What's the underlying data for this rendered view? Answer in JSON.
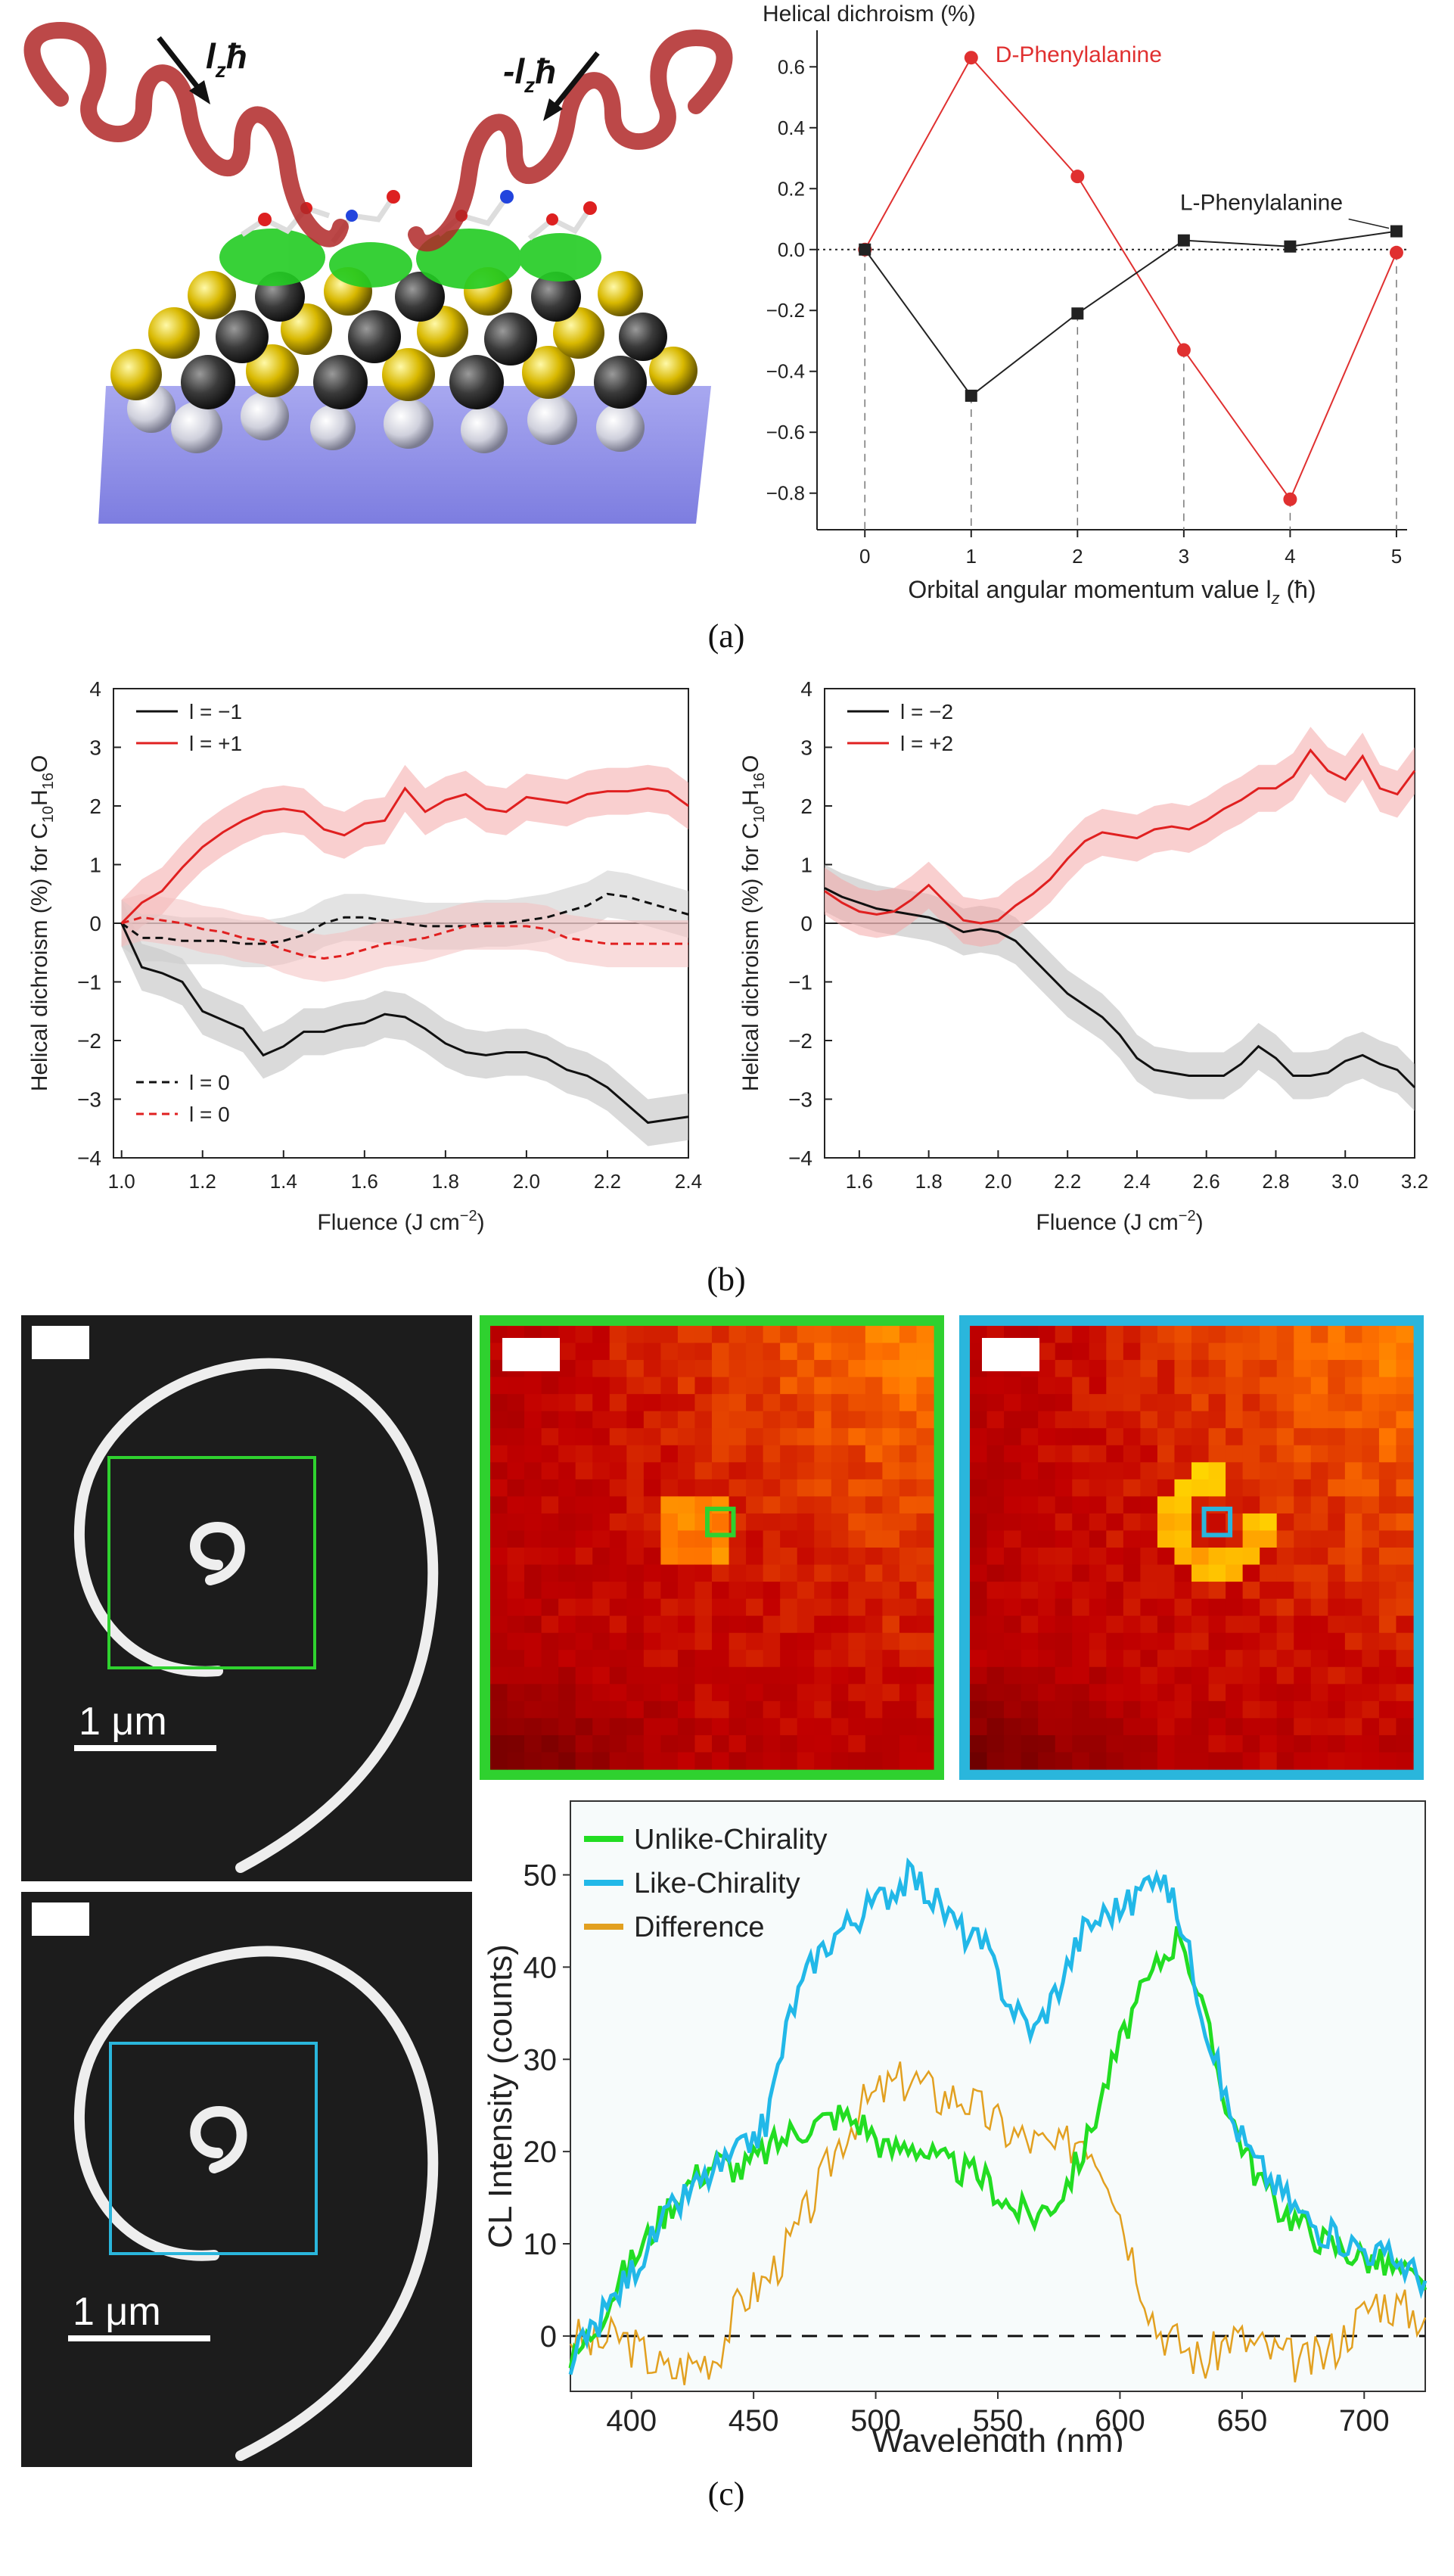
{
  "captions": {
    "a": "(a)",
    "b": "(b)",
    "c": "(c)"
  },
  "illustration_a": {
    "arrow_left_label": "l",
    "arrow_left_sub": "z",
    "arrow_left_hbar": "ħ",
    "arrow_right_label": "-l",
    "arrow_right_sub": "z",
    "arrow_right_hbar": "ħ"
  },
  "images_c": {
    "scale_bar_top": "1 μm",
    "scale_bar_bottom": "1 μm",
    "box_color_top": "#2fd12f",
    "box_color_bottom": "#2ab6dc"
  },
  "chart_data": [
    {
      "id": "a-right",
      "type": "line",
      "title": "Helical dichroism (%)",
      "xlabel": "Orbital angular momentum value l",
      "xlabel_sub": "z",
      "xlabel_unit": " (ħ)",
      "ylabel": "Helical dichroism (%)",
      "xlim": [
        -0.45,
        5.1
      ],
      "ylim": [
        -0.92,
        0.72
      ],
      "xticks": [
        0,
        1,
        2,
        3,
        4,
        5
      ],
      "yticks": [
        0.6,
        0.4,
        0.2,
        0.0,
        -0.2,
        -0.4,
        -0.6,
        -0.8
      ],
      "ytick_labels": [
        "0.6",
        "0.4",
        "0.2",
        "0.0",
        "−0.2",
        "−0.4",
        "−0.6",
        "−0.8"
      ],
      "x": [
        0,
        1,
        2,
        3,
        4,
        5
      ],
      "series": [
        {
          "name": "D-Phenylalanine",
          "label": "D-Phenylalanine",
          "color": "#e03030",
          "marker": "circle",
          "values": [
            0.0,
            0.63,
            0.24,
            -0.33,
            -0.82,
            -0.01
          ]
        },
        {
          "name": "L-Phenylalanine",
          "label": "L-Phenylalanine",
          "color": "#222222",
          "marker": "square",
          "values": [
            0.0,
            -0.48,
            -0.21,
            0.03,
            0.01,
            0.06
          ]
        }
      ]
    },
    {
      "id": "b-left",
      "type": "line",
      "xlabel": "Fluence (J cm",
      "xlabel_sup": "−2",
      "xlabel_end": ")",
      "ylabel": "Helical dichroism (%) for C",
      "ylabel_sub1": "10",
      "ylabel_mid": "H",
      "ylabel_sub2": "16",
      "ylabel_end": "O",
      "xlim": [
        0.98,
        2.4
      ],
      "ylim": [
        -4,
        4
      ],
      "xticks": [
        1.0,
        1.2,
        1.4,
        1.6,
        1.8,
        2.0,
        2.2,
        2.4
      ],
      "xtick_labels": [
        "1.0",
        "1.2",
        "1.4",
        "1.6",
        "1.8",
        "2.0",
        "2.2",
        "2.4"
      ],
      "yticks": [
        4,
        3,
        2,
        1,
        0,
        -1,
        -2,
        -3,
        -4
      ],
      "ytick_labels": [
        "4",
        "3",
        "2",
        "1",
        "0",
        "−1",
        "−2",
        "−3",
        "−4"
      ],
      "x": [
        1.0,
        1.05,
        1.1,
        1.15,
        1.2,
        1.25,
        1.3,
        1.35,
        1.4,
        1.45,
        1.5,
        1.55,
        1.6,
        1.65,
        1.7,
        1.75,
        1.8,
        1.85,
        1.9,
        1.95,
        2.0,
        2.05,
        2.1,
        2.15,
        2.2,
        2.25,
        2.3,
        2.35,
        2.4
      ],
      "series": [
        {
          "name": "l = −1",
          "color": "#111111",
          "dash": "solid",
          "band": "#bbbbbb",
          "values": [
            0,
            -0.75,
            -0.85,
            -1.0,
            -1.5,
            -1.65,
            -1.8,
            -2.25,
            -2.1,
            -1.85,
            -1.85,
            -1.75,
            -1.7,
            -1.55,
            -1.6,
            -1.8,
            -2.05,
            -2.2,
            -2.25,
            -2.2,
            -2.2,
            -2.3,
            -2.5,
            -2.6,
            -2.8,
            -3.1,
            -3.4,
            -3.35,
            -3.3
          ]
        },
        {
          "name": "l = +1",
          "color": "#e02020",
          "dash": "solid",
          "band": "#f4a8a8",
          "values": [
            0,
            0.35,
            0.55,
            0.95,
            1.3,
            1.55,
            1.75,
            1.9,
            1.95,
            1.9,
            1.6,
            1.5,
            1.7,
            1.75,
            2.3,
            1.9,
            2.1,
            2.2,
            1.95,
            1.9,
            2.15,
            2.1,
            2.05,
            2.2,
            2.25,
            2.25,
            2.3,
            2.25,
            2.0
          ]
        },
        {
          "name": "l = 0 (black)",
          "color": "#111111",
          "dash": "dashed",
          "band": "#cccccc",
          "values": [
            0,
            -0.25,
            -0.25,
            -0.3,
            -0.3,
            -0.3,
            -0.35,
            -0.35,
            -0.3,
            -0.2,
            0.0,
            0.1,
            0.1,
            0.05,
            0.0,
            -0.05,
            -0.05,
            -0.05,
            0.0,
            0.0,
            0.05,
            0.1,
            0.2,
            0.3,
            0.5,
            0.45,
            0.35,
            0.25,
            0.15
          ]
        },
        {
          "name": "l = 0 (red)",
          "color": "#e02020",
          "dash": "dashed",
          "band": "#f4c0c0",
          "values": [
            0,
            0.1,
            0.05,
            0.0,
            -0.1,
            -0.15,
            -0.25,
            -0.3,
            -0.45,
            -0.55,
            -0.6,
            -0.55,
            -0.45,
            -0.35,
            -0.3,
            -0.25,
            -0.15,
            -0.05,
            -0.05,
            -0.05,
            -0.05,
            -0.1,
            -0.25,
            -0.3,
            -0.35,
            -0.35,
            -0.35,
            -0.35,
            -0.35
          ]
        }
      ],
      "legend": [
        {
          "label": "l = −1",
          "color": "#111111",
          "dash": "solid"
        },
        {
          "label": "l = +1",
          "color": "#e02020",
          "dash": "solid"
        },
        {
          "label": "l = 0",
          "color": "#111111",
          "dash": "dashed"
        },
        {
          "label": "l = 0",
          "color": "#e02020",
          "dash": "dashed"
        }
      ]
    },
    {
      "id": "b-right",
      "type": "line",
      "xlabel": "Fluence (J cm",
      "xlabel_sup": "−2",
      "xlabel_end": ")",
      "ylabel": "Helical dichroism (%) for C",
      "ylabel_sub1": "10",
      "ylabel_mid": "H",
      "ylabel_sub2": "16",
      "ylabel_end": "O",
      "xlim": [
        1.5,
        3.2
      ],
      "ylim": [
        -4,
        4
      ],
      "xticks": [
        1.6,
        1.8,
        2.0,
        2.2,
        2.4,
        2.6,
        2.8,
        3.0,
        3.2
      ],
      "xtick_labels": [
        "1.6",
        "1.8",
        "2.0",
        "2.2",
        "2.4",
        "2.6",
        "2.8",
        "3.0",
        "3.2"
      ],
      "yticks": [
        4,
        3,
        2,
        1,
        0,
        -1,
        -2,
        -3,
        -4
      ],
      "ytick_labels": [
        "4",
        "3",
        "2",
        "1",
        "0",
        "−1",
        "−2",
        "−3",
        "−4"
      ],
      "x": [
        1.5,
        1.55,
        1.6,
        1.65,
        1.7,
        1.75,
        1.8,
        1.85,
        1.9,
        1.95,
        2.0,
        2.05,
        2.1,
        2.15,
        2.2,
        2.25,
        2.3,
        2.35,
        2.4,
        2.45,
        2.5,
        2.55,
        2.6,
        2.65,
        2.7,
        2.75,
        2.8,
        2.85,
        2.9,
        2.95,
        3.0,
        3.05,
        3.1,
        3.15,
        3.2
      ],
      "series": [
        {
          "name": "l = −2",
          "color": "#111111",
          "dash": "solid",
          "band": "#bbbbbb",
          "values": [
            0.6,
            0.45,
            0.35,
            0.25,
            0.2,
            0.15,
            0.1,
            0.0,
            -0.15,
            -0.1,
            -0.15,
            -0.3,
            -0.6,
            -0.9,
            -1.2,
            -1.4,
            -1.6,
            -1.9,
            -2.3,
            -2.5,
            -2.55,
            -2.6,
            -2.6,
            -2.6,
            -2.4,
            -2.1,
            -2.3,
            -2.6,
            -2.6,
            -2.55,
            -2.35,
            -2.25,
            -2.4,
            -2.5,
            -2.8
          ]
        },
        {
          "name": "l = +2",
          "color": "#e02020",
          "dash": "solid",
          "band": "#f4a8a8",
          "values": [
            0.55,
            0.35,
            0.2,
            0.15,
            0.2,
            0.4,
            0.65,
            0.35,
            0.05,
            0.0,
            0.05,
            0.3,
            0.5,
            0.75,
            1.1,
            1.4,
            1.55,
            1.5,
            1.45,
            1.6,
            1.65,
            1.6,
            1.75,
            1.95,
            2.1,
            2.3,
            2.3,
            2.5,
            2.95,
            2.6,
            2.45,
            2.85,
            2.3,
            2.2,
            2.6
          ]
        }
      ],
      "legend": [
        {
          "label": "l = −2",
          "color": "#111111",
          "dash": "solid"
        },
        {
          "label": "l = +2",
          "color": "#e02020",
          "dash": "solid"
        }
      ]
    },
    {
      "id": "c-spectrum",
      "type": "line",
      "xlabel": "Wavelength (nm)",
      "ylabel": "CL Intensity (counts)",
      "xlim": [
        375,
        725
      ],
      "ylim": [
        -6,
        58
      ],
      "xticks": [
        400,
        450,
        500,
        550,
        600,
        650,
        700
      ],
      "yticks": [
        0,
        10,
        20,
        30,
        40,
        50
      ],
      "x": [
        375,
        385,
        395,
        405,
        415,
        425,
        435,
        445,
        455,
        465,
        475,
        485,
        495,
        505,
        515,
        525,
        535,
        545,
        555,
        565,
        575,
        585,
        595,
        605,
        615,
        625,
        635,
        645,
        655,
        665,
        675,
        685,
        695,
        705,
        715,
        725
      ],
      "series": [
        {
          "name": "Unlike-Chirality",
          "color": "#22dd22",
          "values": [
            -3,
            1,
            6,
            10,
            14,
            17,
            19,
            18,
            20,
            22,
            23,
            24,
            23,
            20,
            21,
            19,
            18,
            17,
            14,
            13,
            15,
            20,
            28,
            35,
            40,
            44,
            34,
            24,
            18,
            14,
            12,
            10,
            9,
            8,
            7,
            5
          ]
        },
        {
          "name": "Like-Chirality",
          "color": "#22b8e8",
          "values": [
            -3,
            1,
            5,
            9,
            13,
            16,
            18,
            20,
            23,
            35,
            41,
            44,
            46,
            48,
            50,
            47,
            44,
            42,
            36,
            33,
            38,
            44,
            46,
            47,
            51,
            45,
            34,
            24,
            19,
            16,
            13,
            11,
            10,
            9,
            8,
            6
          ]
        },
        {
          "name": "Difference",
          "color": "#e2a020",
          "values": [
            0,
            -1,
            0,
            -2,
            -4,
            -3,
            -2,
            4,
            6,
            10,
            15,
            21,
            25,
            27,
            28,
            26,
            26,
            24,
            22,
            21,
            20,
            22,
            18,
            9,
            1,
            -1,
            -3,
            0,
            -1,
            -2,
            -3,
            -2,
            1,
            4,
            3,
            2
          ]
        }
      ]
    }
  ]
}
